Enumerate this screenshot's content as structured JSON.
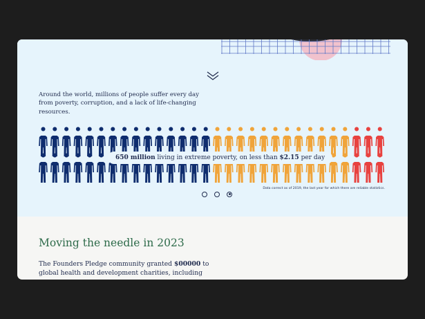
{
  "intro": {
    "text": "Around the world, millions of people suffer every day from poverty, corruption, and a lack of life-changing resources."
  },
  "stat": {
    "amount": "650 million",
    "middle": " living in extreme poverty, on less than ",
    "threshold": "$2.15",
    "suffix": " per day"
  },
  "carousel": {
    "slides": 3,
    "active_index": 2
  },
  "footnote": "Data correct as of 2019, the last year for which there are reliable statistics.",
  "section": {
    "heading": "Moving the needle in 2023",
    "body_prefix": "The Founders Pledge community granted ",
    "amount": "$00000",
    "body_suffix": " to global health and development charities, including"
  },
  "figures": {
    "rows": 2,
    "per_row": 30,
    "segments": [
      {
        "color": "#0f2d6e",
        "count": 15
      },
      {
        "color": "#f0a43a",
        "count": 12
      },
      {
        "color": "#e8423f",
        "count": 3
      }
    ]
  },
  "colors": {
    "hero_background": "#e6f4fc",
    "navy": "#1f2a4d",
    "heading_green": "#2e6b4a"
  },
  "icons": {
    "chevron": "chevron-down-double-icon",
    "decoration": "grid-decoration"
  }
}
